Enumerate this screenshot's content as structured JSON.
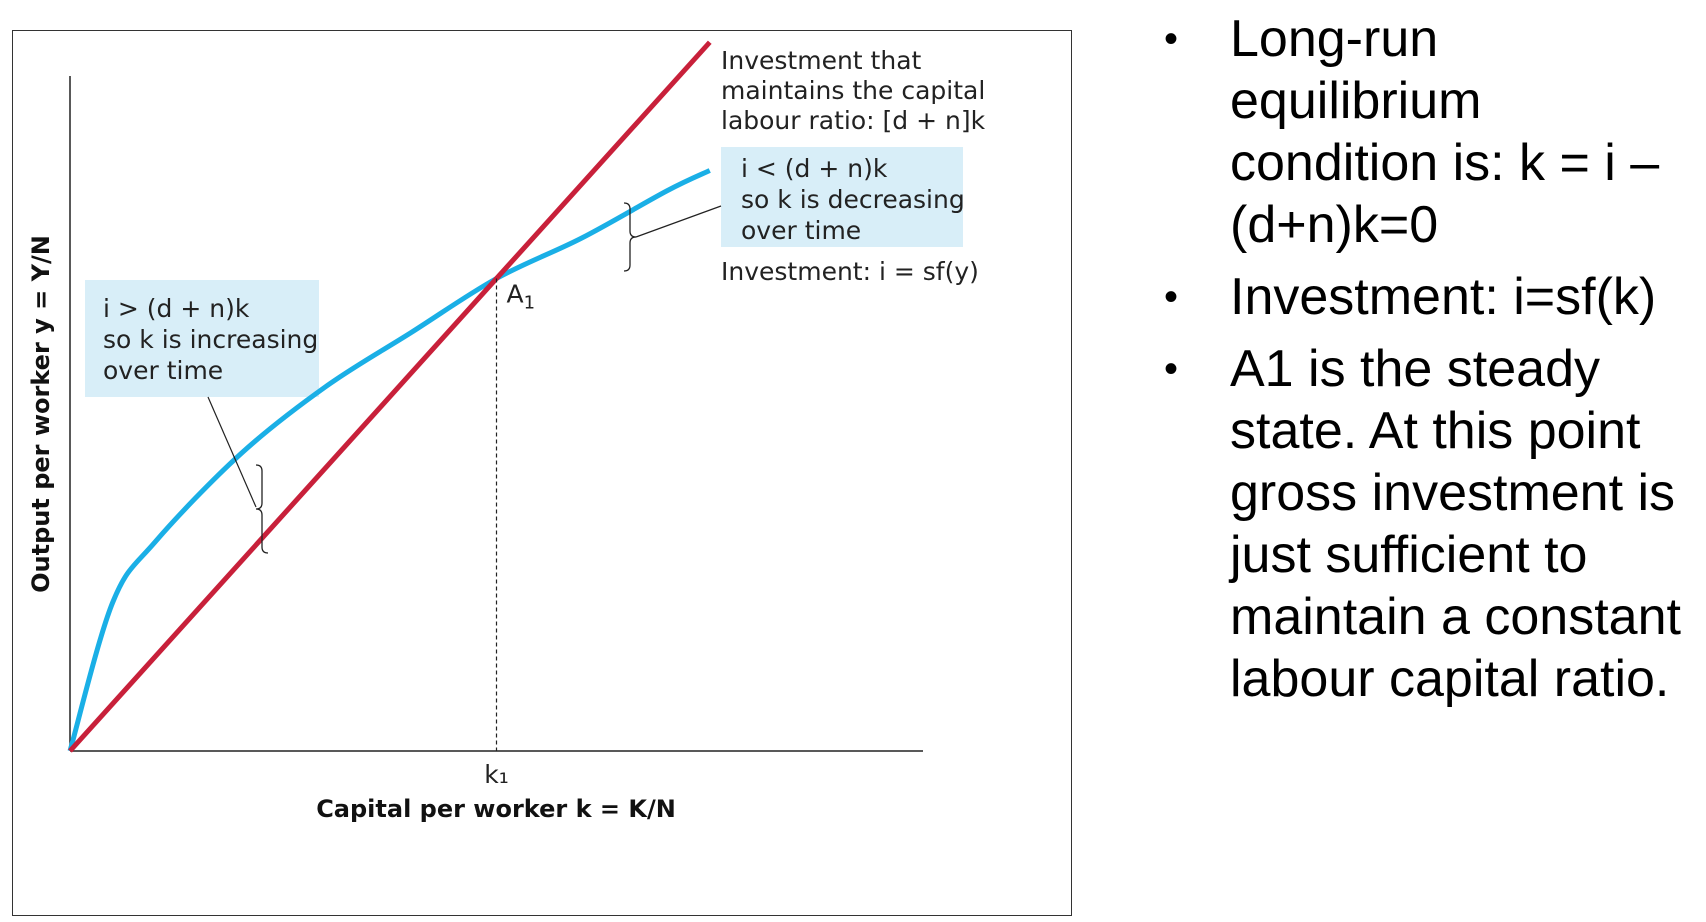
{
  "colors": {
    "investment_curve": "#1aafe6",
    "maintenance_line": "#c8203a",
    "annotation_box": "#d8eef8",
    "axis": "#222222"
  },
  "chart_data": {
    "type": "line",
    "xlabel": "Capital per worker k = K/N",
    "ylabel": "Output per worker y = Y/N",
    "xlim": [
      0,
      1
    ],
    "ylim": [
      0,
      1
    ],
    "grid": false,
    "x_ticks": [
      {
        "x": 0.5,
        "label": "k₁"
      }
    ],
    "series": [
      {
        "name": "Investment: i = sf(y)",
        "shape": "concave",
        "x": [
          0,
          0.05,
          0.1,
          0.2,
          0.3,
          0.4,
          0.5,
          0.6,
          0.7,
          0.75
        ],
        "y": [
          0,
          0.22,
          0.31,
          0.44,
          0.54,
          0.62,
          0.7,
          0.76,
          0.83,
          0.86
        ]
      },
      {
        "name": "Investment that maintains the capital labour ratio: [d + n]k",
        "shape": "linear",
        "x": [
          0,
          0.75
        ],
        "y": [
          0,
          1.05
        ]
      }
    ],
    "steady_state": {
      "label": "A",
      "sub": "1",
      "x": 0.5,
      "y": 0.7
    },
    "annotations": {
      "right_box": [
        "i < (d + n)k",
        "so k is decreasing",
        "over time"
      ],
      "left_box": [
        "i > (d + n)k",
        "so k is increasing",
        "over time"
      ],
      "line_label": [
        "Investment that",
        "maintains the capital",
        "labour ratio: [d + n]k"
      ],
      "curve_label": "Investment: i = sf(y)"
    }
  },
  "bullets": [
    "Long-run equilibrium condition is: k = i – (d+n)k=0",
    "Investment: i=sf(k)",
    "A1 is the steady state. At this point gross investment is just sufficient to maintain a constant labour capital ratio."
  ]
}
